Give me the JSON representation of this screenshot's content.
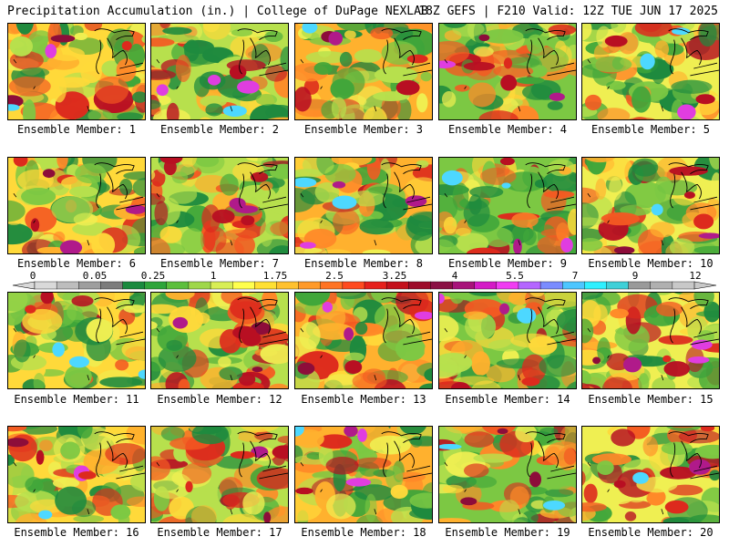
{
  "header": {
    "left": "Precipitation Accumulation (in.) | College of DuPage NEXLAB",
    "right": "18Z GEFS | F210 Valid: 12Z TUE JUN 17 2025"
  },
  "members": [
    {
      "label": "Ensemble Member: 1"
    },
    {
      "label": "Ensemble Member: 2"
    },
    {
      "label": "Ensemble Member: 3"
    },
    {
      "label": "Ensemble Member: 4"
    },
    {
      "label": "Ensemble Member: 5"
    },
    {
      "label": "Ensemble Member: 6"
    },
    {
      "label": "Ensemble Member: 7"
    },
    {
      "label": "Ensemble Member: 8"
    },
    {
      "label": "Ensemble Member: 9"
    },
    {
      "label": "Ensemble Member: 10"
    },
    {
      "label": "Ensemble Member: 11"
    },
    {
      "label": "Ensemble Member: 12"
    },
    {
      "label": "Ensemble Member: 13"
    },
    {
      "label": "Ensemble Member: 14"
    },
    {
      "label": "Ensemble Member: 15"
    },
    {
      "label": "Ensemble Member: 16"
    },
    {
      "label": "Ensemble Member: 17"
    },
    {
      "label": "Ensemble Member: 18"
    },
    {
      "label": "Ensemble Member: 19"
    },
    {
      "label": "Ensemble Member: 20"
    }
  ],
  "colorbar": {
    "ticks": [
      "0",
      "0.05",
      "0.25",
      "1",
      "1.75",
      "2.5",
      "3.25",
      "4",
      "5.5",
      "7",
      "9",
      "12"
    ],
    "colors": [
      "#d9d9d9",
      "#bdbdbd",
      "#9e9e9e",
      "#7c7c7c",
      "#1a8a3e",
      "#2ea53a",
      "#5cbf3c",
      "#9fd74a",
      "#d8ee55",
      "#ffff4d",
      "#ffe033",
      "#ffc12e",
      "#ff9a2a",
      "#ff7324",
      "#ff4a1f",
      "#e6201c",
      "#c4101c",
      "#9d0c2a",
      "#8a1044",
      "#a8127a",
      "#d41ac6",
      "#f03cf2",
      "#b466ff",
      "#7a8cff",
      "#4dc6ff",
      "#2ff0ff",
      "#3fd0d8",
      "#9a9a9a",
      "#b0b0b0",
      "#c8c8c8"
    ]
  }
}
